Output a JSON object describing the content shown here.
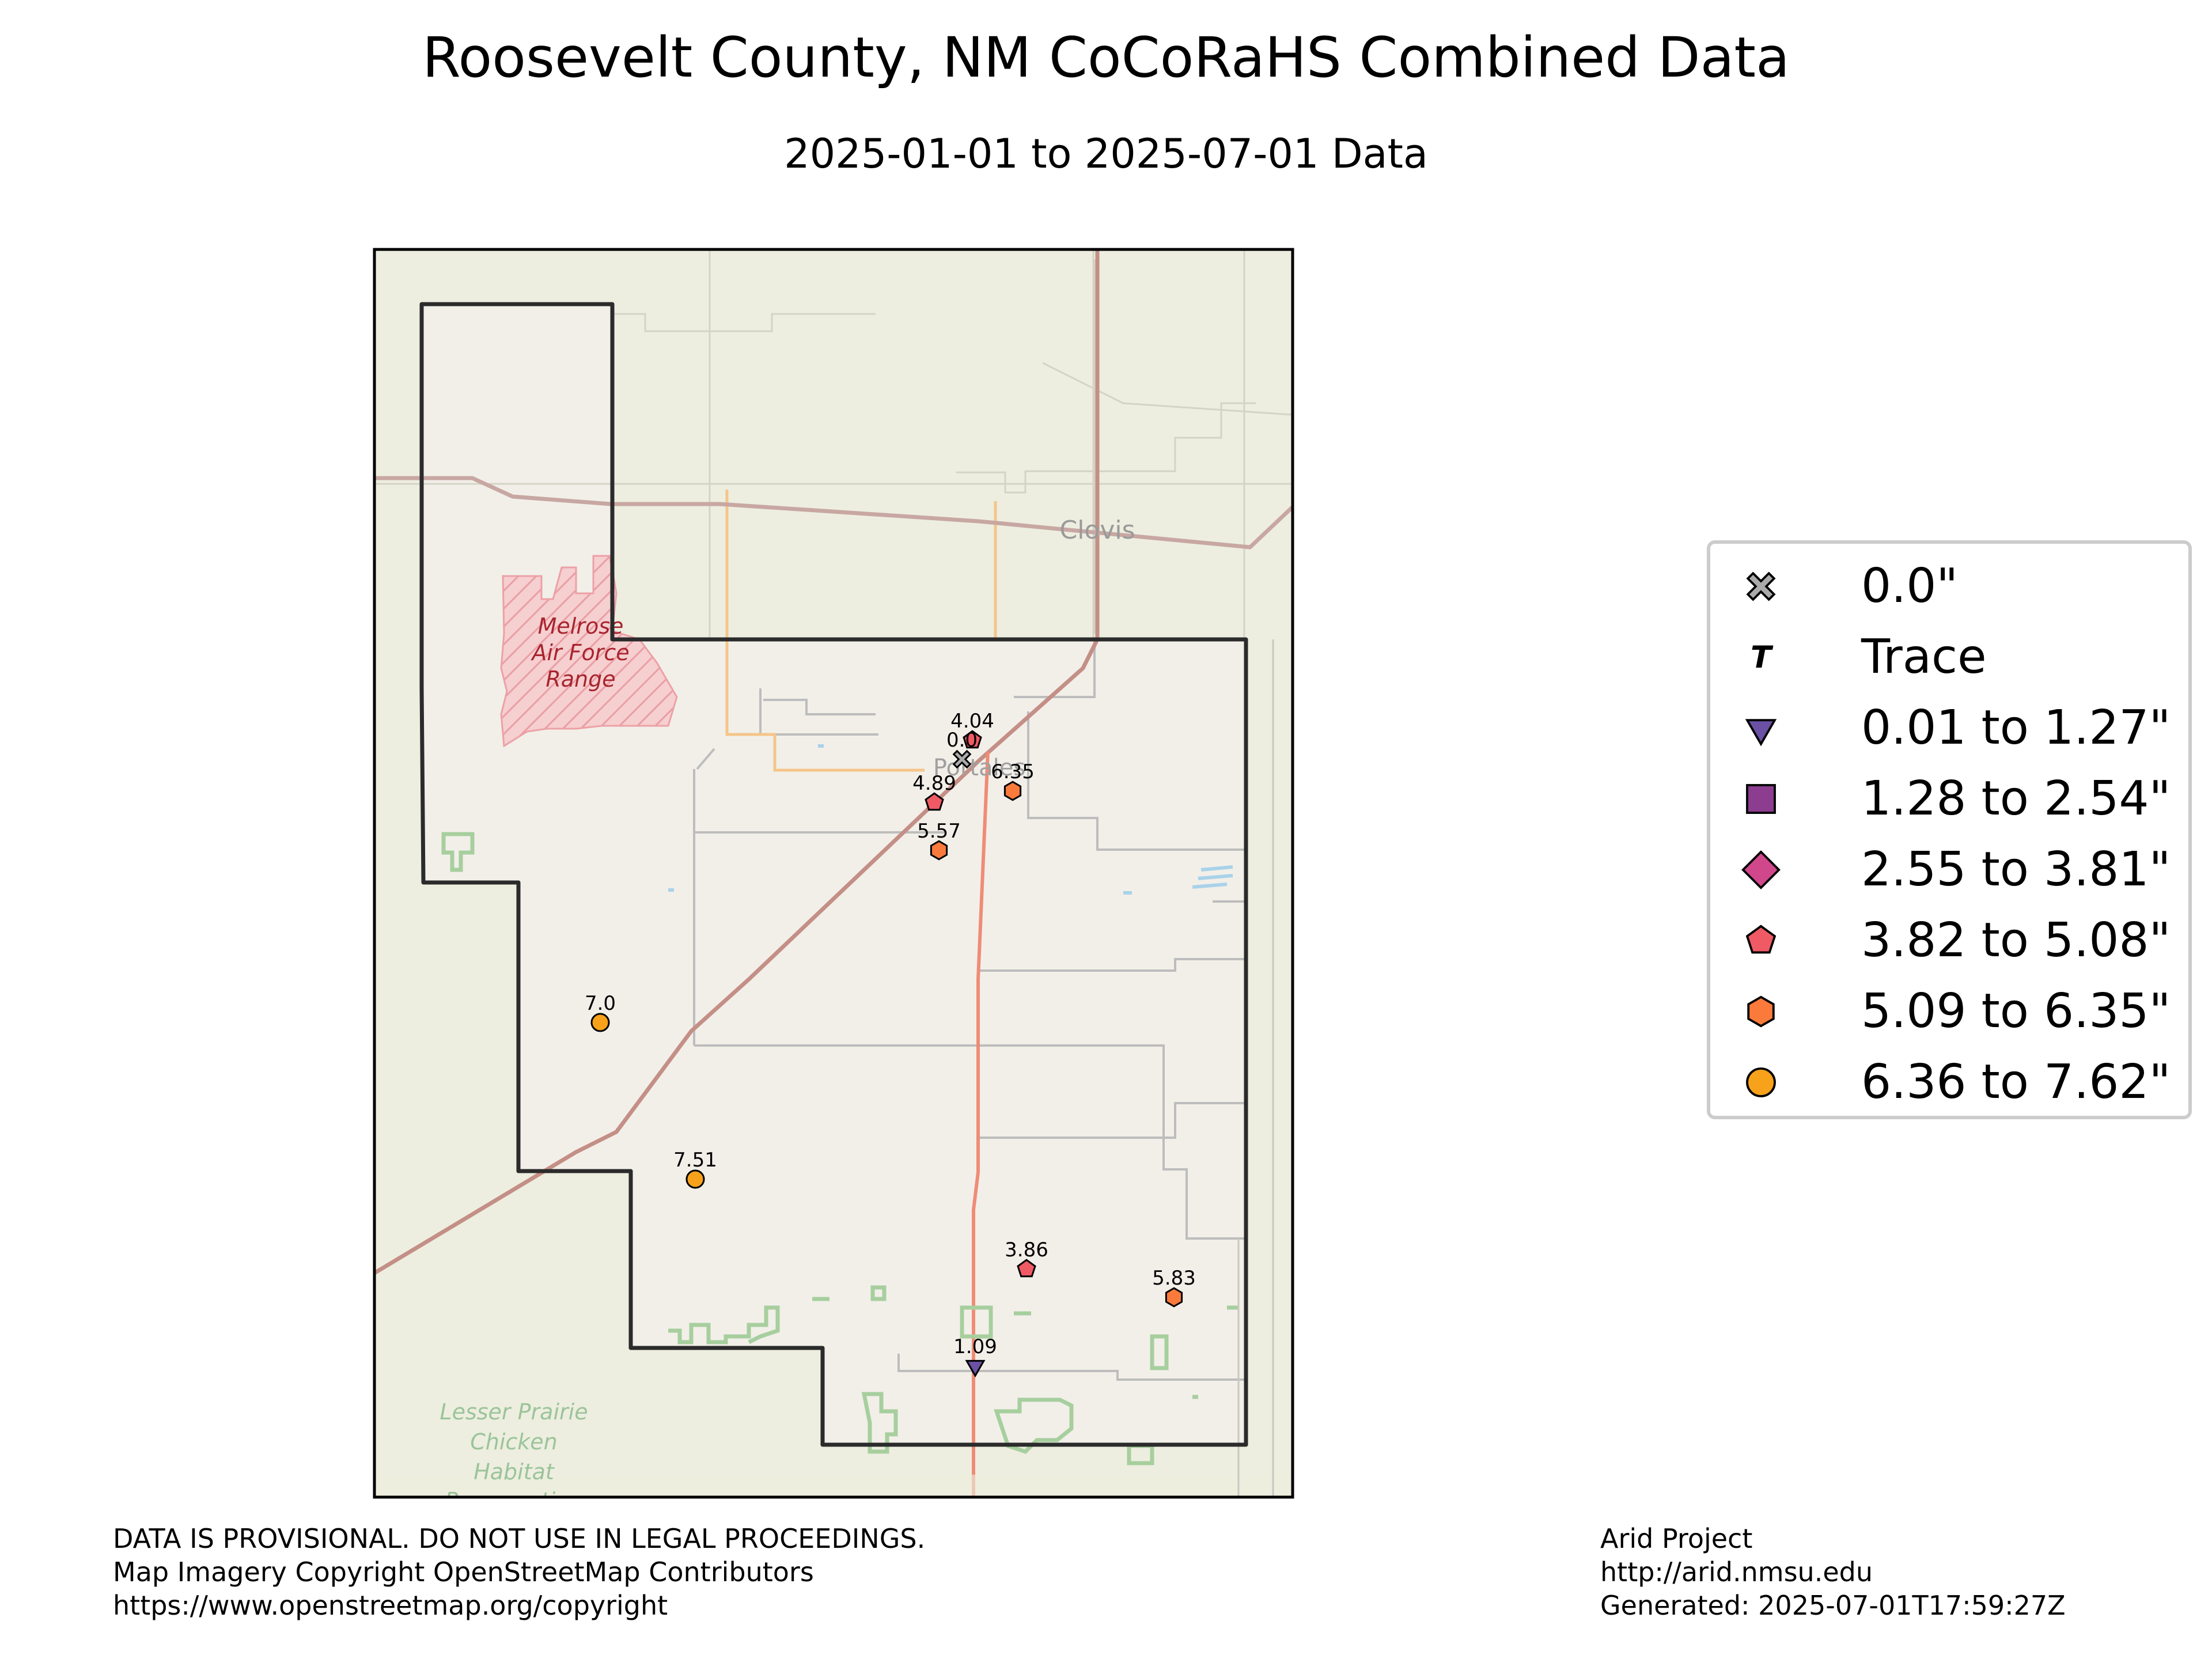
{
  "title": "Roosevelt County, NM CoCoRaHS Combined Data",
  "subtitle": "2025-01-01 to 2025-07-01 Data",
  "basemap_labels": {
    "city": "Clovis",
    "range_line1": "Melrose",
    "range_line2": "Air Force",
    "range_line3": "Range",
    "portales": "Portales",
    "habitat_line1": "Lesser Prairie",
    "habitat_line2": "Chicken",
    "habitat_line3": "Habitat",
    "habitat_line4": "Preservation"
  },
  "colors": {
    "zero": "#aaaaaa",
    "trace": "#000000",
    "bin1": "#6a51a3",
    "bin2": "#8c3d8f",
    "bin3": "#d0478c",
    "bin4": "#f05a64",
    "bin5": "#fa7a3c",
    "bin6": "#f7a21a"
  },
  "legend": [
    {
      "label": "0.0\"",
      "symbol": "x-icon",
      "color": "#aaaaaa"
    },
    {
      "label": "Trace",
      "symbol": "t-icon",
      "color": "#000000"
    },
    {
      "label": "0.01 to 1.27\"",
      "symbol": "triangle-down-icon",
      "color": "#6a51a3"
    },
    {
      "label": "1.28 to 2.54\"",
      "symbol": "square-icon",
      "color": "#8c3d8f"
    },
    {
      "label": "2.55 to 3.81\"",
      "symbol": "diamond-icon",
      "color": "#d0478c"
    },
    {
      "label": "3.82 to 5.08\"",
      "symbol": "pentagon-icon",
      "color": "#f05a64"
    },
    {
      "label": "5.09 to 6.35\"",
      "symbol": "hexagon-icon",
      "color": "#fa7a3c"
    },
    {
      "label": "6.36 to 7.62\"",
      "symbol": "circle-icon",
      "color": "#f7a21a"
    }
  ],
  "stations": [
    {
      "label": "4.04",
      "value": 4.04
    },
    {
      "label": "0.0",
      "value": 0.0
    },
    {
      "label": "6.35",
      "value": 6.35
    },
    {
      "label": "4.89",
      "value": 4.89
    },
    {
      "label": "5.57",
      "value": 5.57
    },
    {
      "label": "7.0",
      "value": 7.0
    },
    {
      "label": "7.51",
      "value": 7.51
    },
    {
      "label": "3.86",
      "value": 3.86
    },
    {
      "label": "5.83",
      "value": 5.83
    },
    {
      "label": "1.09",
      "value": 1.09
    }
  ],
  "footer_left": {
    "line1": "DATA IS PROVISIONAL. DO NOT USE IN LEGAL PROCEEDINGS.",
    "line2": "Map Imagery Copyright OpenStreetMap Contributors",
    "line3": "https://www.openstreetmap.org/copyright"
  },
  "footer_right": {
    "line1": "Arid Project",
    "line2": "http://arid.nmsu.edu",
    "line3": "Generated: 2025-07-01T17:59:27Z"
  }
}
